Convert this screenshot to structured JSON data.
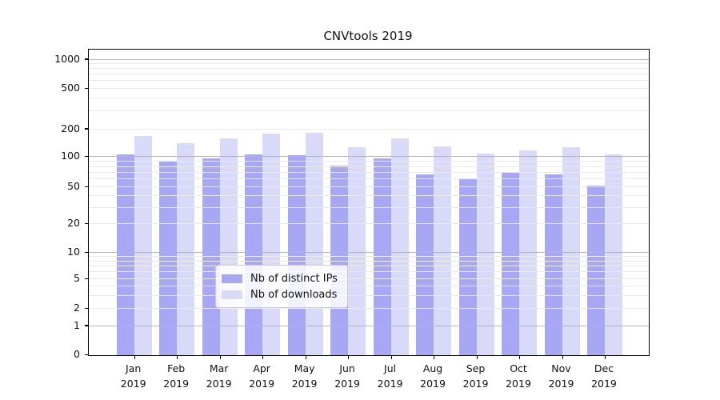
{
  "title": "CNVtools 2019",
  "chart_data": {
    "type": "bar",
    "title": "CNVtools 2019",
    "categories": [
      "Jan",
      "Feb",
      "Mar",
      "Apr",
      "May",
      "Jun",
      "Jul",
      "Aug",
      "Sep",
      "Oct",
      "Nov",
      "Dec"
    ],
    "category_year": "2019",
    "series": [
      {
        "name": "Nb of distinct IPs",
        "color": "#a7a7f4",
        "values": [
          108,
          90,
          98,
          108,
          105,
          82,
          97,
          68,
          60,
          70,
          67,
          52
        ]
      },
      {
        "name": "Nb of downloads",
        "color": "#d9d9f8",
        "values": [
          170,
          141,
          159,
          181,
          183,
          127,
          159,
          131,
          110,
          118,
          129,
          107
        ]
      }
    ],
    "xlabel": "",
    "ylabel": "",
    "yscale": "symlog",
    "ytick_labels": [
      0,
      1,
      2,
      5,
      10,
      20,
      50,
      100,
      200,
      500,
      1000
    ],
    "ylim": [
      0,
      1200
    ],
    "grid": true,
    "legend_position": "lower center",
    "colors": {
      "decade_gridline": "#b5b5b5",
      "minor_gridline": "#eaeaea",
      "axis_spine": "#000000",
      "legend_border": "#cccccc"
    }
  }
}
